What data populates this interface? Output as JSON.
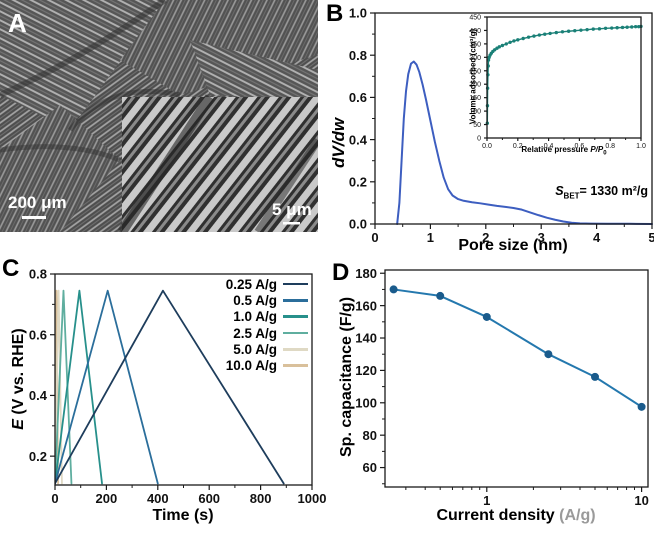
{
  "figure": {
    "panels": {
      "a": {
        "letter": "A",
        "scalebar_left": "200 μm",
        "scalebar_right": "5 μm"
      },
      "b": {
        "letter": "B",
        "ylabel": "dV/dw",
        "xlabel": "Pore size (nm)",
        "sbet": {
          "prefix": "S",
          "sub": "BET",
          "rest": "= 1330 m²/g"
        },
        "inset": {
          "ylabel": "Volume adsorbed (cm³/g)",
          "xlabel_main": "Relative pressure ",
          "xlabel_em": "P/P",
          "xlabel_sub": "0"
        }
      },
      "c": {
        "letter": "C",
        "ylabel_em": "E",
        "ylabel_rest": " (V vs. RHE)",
        "xlabel": "Time (s)",
        "legend": [
          {
            "label": "0.25 A/g",
            "color": "#1e3d5c"
          },
          {
            "label": "0.5 A/g",
            "color": "#2b6e9b"
          },
          {
            "label": "1.0 A/g",
            "color": "#27908b"
          },
          {
            "label": "2.5 A/g",
            "color": "#5fae9f"
          },
          {
            "label": "5.0 A/g",
            "color": "#dfd9c4"
          },
          {
            "label": "10.0 A/g",
            "color": "#d9c09b"
          }
        ]
      },
      "d": {
        "letter": "D",
        "ylabel": "Sp. capacitance (F/g)",
        "xlabel_main": "Current density ",
        "xlabel_faded": "(A/g)"
      }
    },
    "colors": {
      "axis": "#1a1a1a",
      "pore_curve": "#3d5ec0",
      "isotherm": "#1a8077",
      "capacitance_line": "#2478ae",
      "capacitance_marker": "#1a5b8c",
      "watermark_gray": "#9a9a9a"
    }
  },
  "chart_data": [
    {
      "id": "b-main",
      "panel": "B",
      "type": "line",
      "title": "",
      "xlabel": "Pore size (nm)",
      "ylabel": "dV/dw",
      "xlim": [
        0,
        5
      ],
      "ylim": [
        0,
        1.0
      ],
      "grid": false,
      "xticks": [
        {
          "v": 0,
          "l": "0"
        },
        {
          "v": 1,
          "l": "1"
        },
        {
          "v": 2,
          "l": "2"
        },
        {
          "v": 3,
          "l": "3"
        },
        {
          "v": 4,
          "l": "4"
        },
        {
          "v": 5,
          "l": "5"
        }
      ],
      "xminor": [
        0.5,
        1.5,
        2.5,
        3.5,
        4.5
      ],
      "yticks": [
        {
          "v": 0,
          "l": "0.0"
        },
        {
          "v": 0.2,
          "l": "0.2"
        },
        {
          "v": 0.4,
          "l": "0.4"
        },
        {
          "v": 0.6,
          "l": "0.6"
        },
        {
          "v": 0.8,
          "l": "0.8"
        },
        {
          "v": 1.0,
          "l": "1.0"
        }
      ],
      "yminor": [
        0.1,
        0.3,
        0.5,
        0.7,
        0.9
      ],
      "annotation": "SBET = 1330 m2/g",
      "series": [
        {
          "name": "pore size distribution",
          "color": "#3d5ec0",
          "width": 2,
          "points": [
            [
              0.4,
              0.0
            ],
            [
              0.44,
              0.1
            ],
            [
              0.48,
              0.3
            ],
            [
              0.52,
              0.5
            ],
            [
              0.56,
              0.63
            ],
            [
              0.6,
              0.71
            ],
            [
              0.65,
              0.76
            ],
            [
              0.7,
              0.77
            ],
            [
              0.75,
              0.755
            ],
            [
              0.8,
              0.72
            ],
            [
              0.86,
              0.66
            ],
            [
              0.92,
              0.59
            ],
            [
              1.0,
              0.49
            ],
            [
              1.08,
              0.39
            ],
            [
              1.16,
              0.3
            ],
            [
              1.24,
              0.22
            ],
            [
              1.32,
              0.165
            ],
            [
              1.4,
              0.135
            ],
            [
              1.5,
              0.118
            ],
            [
              1.6,
              0.11
            ],
            [
              1.75,
              0.103
            ],
            [
              1.9,
              0.098
            ],
            [
              2.05,
              0.092
            ],
            [
              2.2,
              0.086
            ],
            [
              2.35,
              0.081
            ],
            [
              2.5,
              0.076
            ],
            [
              2.65,
              0.068
            ],
            [
              2.8,
              0.055
            ],
            [
              2.95,
              0.042
            ],
            [
              3.1,
              0.03
            ],
            [
              3.25,
              0.02
            ],
            [
              3.4,
              0.012
            ],
            [
              3.55,
              0.006
            ],
            [
              3.7,
              0.003
            ],
            [
              3.9,
              0.002
            ],
            [
              4.2,
              0.001
            ],
            [
              4.6,
              0.001
            ],
            [
              5.0,
              0.0
            ]
          ]
        }
      ]
    },
    {
      "id": "b-inset",
      "panel": "B inset",
      "type": "line",
      "title": "",
      "xlabel": "Relative pressure P/P0",
      "ylabel": "Volume adsorbed (cm3/g)",
      "xlim": [
        0,
        1.0
      ],
      "ylim": [
        0,
        450
      ],
      "grid": false,
      "xticks": [
        {
          "v": 0.0,
          "l": "0.0"
        },
        {
          "v": 0.2,
          "l": "0.2"
        },
        {
          "v": 0.4,
          "l": "0.4"
        },
        {
          "v": 0.6,
          "l": "0.6"
        },
        {
          "v": 0.8,
          "l": "0.8"
        },
        {
          "v": 1.0,
          "l": "1.0"
        }
      ],
      "xminor": [
        0.1,
        0.3,
        0.5,
        0.7,
        0.9
      ],
      "yticks": [
        {
          "v": 0,
          "l": "0"
        },
        {
          "v": 50,
          "l": "50"
        },
        {
          "v": 100,
          "l": "100"
        },
        {
          "v": 150,
          "l": "150"
        },
        {
          "v": 200,
          "l": "200"
        },
        {
          "v": 250,
          "l": "250"
        },
        {
          "v": 300,
          "l": "300"
        },
        {
          "v": 350,
          "l": "350"
        },
        {
          "v": 400,
          "l": "400"
        },
        {
          "v": 450,
          "l": "450"
        }
      ],
      "yminor": [],
      "series": [
        {
          "name": "N2 adsorption isotherm",
          "color": "#1a8077",
          "width": 1.4,
          "marker": true,
          "marker_r": 1.7,
          "points": [
            [
              0.002,
              55
            ],
            [
              0.003,
              120
            ],
            [
              0.004,
              185
            ],
            [
              0.006,
              235
            ],
            [
              0.008,
              268
            ],
            [
              0.01,
              290
            ],
            [
              0.014,
              300
            ],
            [
              0.02,
              308
            ],
            [
              0.028,
              315
            ],
            [
              0.038,
              322
            ],
            [
              0.05,
              328
            ],
            [
              0.065,
              334
            ],
            [
              0.08,
              339
            ],
            [
              0.1,
              344
            ],
            [
              0.125,
              350
            ],
            [
              0.15,
              356
            ],
            [
              0.175,
              361
            ],
            [
              0.2,
              365
            ],
            [
              0.235,
              370
            ],
            [
              0.27,
              375
            ],
            [
              0.305,
              379
            ],
            [
              0.34,
              383
            ],
            [
              0.375,
              386
            ],
            [
              0.41,
              389
            ],
            [
              0.45,
              392
            ],
            [
              0.49,
              395
            ],
            [
              0.53,
              397
            ],
            [
              0.57,
              399
            ],
            [
              0.61,
              401
            ],
            [
              0.65,
              403
            ],
            [
              0.69,
              405
            ],
            [
              0.73,
              406
            ],
            [
              0.77,
              408
            ],
            [
              0.81,
              409
            ],
            [
              0.845,
              410
            ],
            [
              0.88,
              411
            ],
            [
              0.91,
              412
            ],
            [
              0.94,
              413
            ],
            [
              0.965,
              414
            ],
            [
              0.985,
              414
            ],
            [
              1.0,
              415
            ]
          ]
        }
      ]
    },
    {
      "id": "c-main",
      "panel": "C",
      "type": "line",
      "title": "",
      "xlabel": "Time (s)",
      "ylabel": "E (V vs. RHE)",
      "xlim": [
        0,
        1000
      ],
      "ylim": [
        0.105,
        0.8
      ],
      "grid": false,
      "legend_position": "top-right",
      "xticks": [
        {
          "v": 0,
          "l": "0"
        },
        {
          "v": 200,
          "l": "200"
        },
        {
          "v": 400,
          "l": "400"
        },
        {
          "v": 600,
          "l": "600"
        },
        {
          "v": 800,
          "l": "800"
        },
        {
          "v": 1000,
          "l": "1000"
        }
      ],
      "xminor": [
        100,
        300,
        500,
        700,
        900
      ],
      "yticks": [
        {
          "v": 0.2,
          "l": "0.2"
        },
        {
          "v": 0.4,
          "l": "0.4"
        },
        {
          "v": 0.6,
          "l": "0.6"
        },
        {
          "v": 0.8,
          "l": "0.8"
        }
      ],
      "yminor": [
        0.3,
        0.5,
        0.7
      ],
      "series": [
        {
          "name": "10.0 A/g",
          "color": "#d9c09b",
          "width": 1.8,
          "points": [
            [
              0,
              0.11
            ],
            [
              6,
              0.745
            ],
            [
              12,
              0.11
            ]
          ]
        },
        {
          "name": "5.0 A/g",
          "color": "#dfd9c4",
          "width": 1.8,
          "points": [
            [
              0,
              0.11
            ],
            [
              14,
              0.745
            ],
            [
              27,
              0.11
            ]
          ]
        },
        {
          "name": "2.5 A/g",
          "color": "#5fae9f",
          "width": 1.8,
          "points": [
            [
              0,
              0.11
            ],
            [
              33,
              0.745
            ],
            [
              64,
              0.11
            ]
          ]
        },
        {
          "name": "1.0 A/g",
          "color": "#27908b",
          "width": 1.8,
          "points": [
            [
              0,
              0.11
            ],
            [
              95,
              0.745
            ],
            [
              183,
              0.11
            ]
          ]
        },
        {
          "name": "0.5 A/g",
          "color": "#2b6e9b",
          "width": 1.8,
          "points": [
            [
              0,
              0.11
            ],
            [
              205,
              0.745
            ],
            [
              400,
              0.11
            ]
          ]
        },
        {
          "name": "0.25 A/g",
          "color": "#1e3d5c",
          "width": 1.8,
          "points": [
            [
              0,
              0.11
            ],
            [
              420,
              0.745
            ],
            [
              890,
              0.11
            ]
          ]
        }
      ]
    },
    {
      "id": "d-main",
      "panel": "D",
      "type": "line",
      "title": "",
      "xlabel": "Current density (A/g)",
      "ylabel": "Sp. capacitance (F/g)",
      "xscale": "log",
      "xlim": [
        0.22,
        11
      ],
      "ylim": [
        48,
        182
      ],
      "grid": false,
      "xticks": [
        {
          "v": 1,
          "l": "1"
        },
        {
          "v": 10,
          "l": "10"
        }
      ],
      "xminor": [
        0.3,
        0.4,
        0.5,
        0.6,
        0.7,
        0.8,
        0.9,
        2,
        3,
        4,
        5,
        6,
        7,
        8,
        9
      ],
      "yticks": [
        {
          "v": 60,
          "l": "60"
        },
        {
          "v": 80,
          "l": "80"
        },
        {
          "v": 100,
          "l": "100"
        },
        {
          "v": 120,
          "l": "120"
        },
        {
          "v": 140,
          "l": "140"
        },
        {
          "v": 160,
          "l": "160"
        },
        {
          "v": 180,
          "l": "180"
        }
      ],
      "yminor": [
        50,
        70,
        90,
        110,
        130,
        150,
        170
      ],
      "series": [
        {
          "name": "specific capacitance",
          "color": "#2478ae",
          "width": 2,
          "marker": true,
          "marker_r": 4,
          "marker_color": "#1a5b8c",
          "points": [
            [
              0.25,
              170
            ],
            [
              0.5,
              166
            ],
            [
              1.0,
              153
            ],
            [
              2.5,
              130
            ],
            [
              5.0,
              116
            ],
            [
              10.0,
              97.5
            ]
          ]
        }
      ]
    }
  ]
}
